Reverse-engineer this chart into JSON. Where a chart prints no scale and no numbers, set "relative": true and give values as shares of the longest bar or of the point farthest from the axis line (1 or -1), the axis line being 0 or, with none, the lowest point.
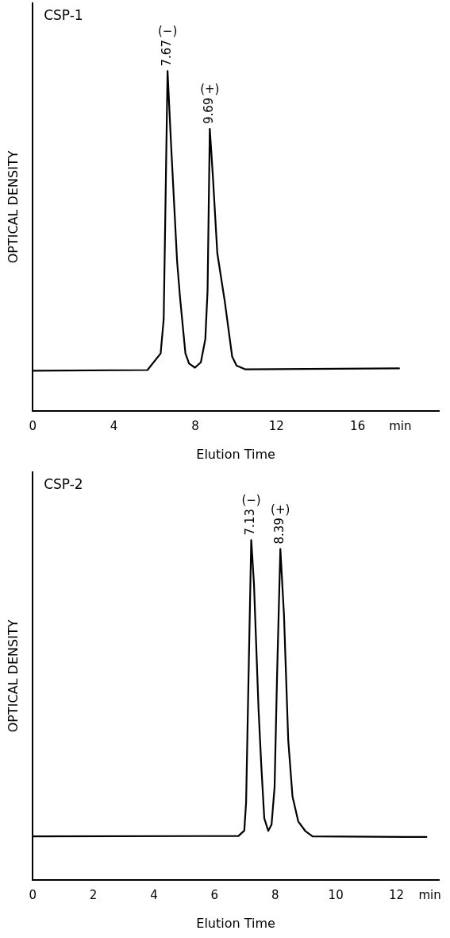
{
  "chart_data": [
    {
      "type": "line",
      "title": "CSP-1",
      "xlabel": "Elution Time",
      "ylabel": "OPTICAL DENSITY",
      "relative": true,
      "xlim": [
        0,
        20
      ],
      "xticks": [
        0,
        4,
        8,
        12,
        16,
        {
          "value": 18.1,
          "label": "min"
        }
      ],
      "grid": false,
      "legend": false,
      "marker": "none",
      "line_style": "solid",
      "annotations": [
        {
          "text": "7.67",
          "x": 6.64,
          "y": 1
        },
        "(−)",
        {
          "text": "9.69",
          "x": 8.72,
          "y": 0.83
        },
        "(+)"
      ],
      "x": [
        0,
        5.65,
        6.3,
        6.45,
        6.64,
        6.82,
        7.11,
        7.26,
        7.52,
        7.7,
        7.99,
        8.28,
        8.5,
        8.61,
        8.72,
        8.87,
        9.09,
        9.46,
        9.82,
        10.04,
        10.48,
        18.04
      ],
      "series": [
        {
          "color": "#000000",
          "values": [
            0.118,
            0.12,
            0.169,
            0.27,
            1.0,
            0.776,
            0.44,
            0.33,
            0.169,
            0.139,
            0.127,
            0.143,
            0.211,
            0.354,
            0.83,
            0.692,
            0.464,
            0.321,
            0.16,
            0.133,
            0.122,
            0.125
          ]
        }
      ]
    },
    {
      "type": "line",
      "title": "CSP-2",
      "xlabel": "Elution Time",
      "ylabel": "OPTICAL DENSITY",
      "relative": true,
      "xlim": [
        0,
        13.4
      ],
      "xticks": [
        0,
        2,
        4,
        6,
        8,
        10,
        12,
        {
          "value": 13.1,
          "label": "min"
        }
      ],
      "grid": false,
      "legend": false,
      "marker": "none",
      "line_style": "solid",
      "annotations": [
        {
          "text": "7.13",
          "x": 7.21,
          "y": 1
        },
        "(−)",
        {
          "text": "8.39",
          "x": 8.17,
          "y": 0.974
        },
        "(+)"
      ],
      "x": [
        0,
        6.79,
        6.98,
        7.04,
        7.12,
        7.21,
        7.3,
        7.45,
        7.54,
        7.64,
        7.77,
        7.88,
        7.98,
        8.06,
        8.17,
        8.29,
        8.43,
        8.57,
        8.76,
        8.99,
        9.23,
        12.99
      ],
      "series": [
        {
          "color": "#000000",
          "values": [
            0.128,
            0.129,
            0.145,
            0.227,
            0.595,
            1.0,
            0.871,
            0.503,
            0.338,
            0.181,
            0.144,
            0.163,
            0.273,
            0.595,
            0.974,
            0.779,
            0.411,
            0.246,
            0.172,
            0.144,
            0.128,
            0.126
          ]
        }
      ]
    }
  ]
}
